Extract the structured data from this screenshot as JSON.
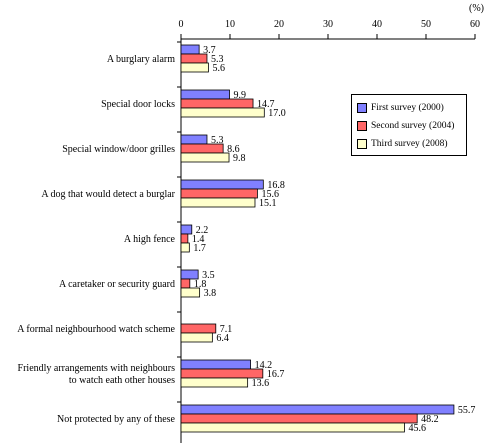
{
  "chart_data": {
    "type": "bar",
    "orientation": "horizontal",
    "unit_label": "(%)",
    "xlim": [
      0,
      60
    ],
    "ticks": [
      0,
      10,
      20,
      30,
      40,
      50,
      60
    ],
    "categories": [
      "A burglary alarm",
      "Special door locks",
      "Special window/door grilles",
      "A dog that would detect a burglar",
      "A high fence",
      "A caretaker or security guard",
      "A formal neighbourhood watch scheme",
      "Friendly arrangements with neighbours to watch eath other houses",
      "Not protected by any of these"
    ],
    "category_lines": [
      [
        "A burglary alarm"
      ],
      [
        "Special door locks"
      ],
      [
        "Special window/door grilles"
      ],
      [
        "A dog that would detect a burglar"
      ],
      [
        "A high fence"
      ],
      [
        "A caretaker or security guard"
      ],
      [
        "A formal neighbourhood watch scheme"
      ],
      [
        "Friendly arrangements with neighbours",
        "to watch eath other houses"
      ],
      [
        "Not protected by any of these"
      ]
    ],
    "series": [
      {
        "name": "First survey (2000)",
        "color": "#8080ff",
        "values": [
          3.7,
          9.9,
          5.3,
          16.8,
          2.2,
          3.5,
          null,
          14.2,
          55.7
        ],
        "labels": [
          "3.7",
          "9.9",
          "5.3",
          "16.8",
          "2.2",
          "3.5",
          "",
          "14.2",
          "55.7"
        ]
      },
      {
        "name": "Second survey (2004)",
        "color": "#ff6666",
        "values": [
          5.3,
          14.7,
          8.6,
          15.6,
          1.4,
          1.8,
          7.1,
          16.7,
          48.2
        ],
        "labels": [
          "5.3",
          "14.7",
          "8.6",
          "15.6",
          "1.4",
          "1.8",
          "7.1",
          "16.7",
          "48.2"
        ]
      },
      {
        "name": "Third survey (2008)",
        "color": "#ffffcc",
        "values": [
          5.6,
          17.0,
          9.8,
          15.1,
          1.7,
          3.8,
          6.4,
          13.6,
          45.6
        ],
        "labels": [
          "5.6",
          "17.0",
          "9.8",
          "15.1",
          "1.7",
          "3.8",
          "6.4",
          "13.6",
          "45.6"
        ]
      }
    ],
    "legend_position": "right",
    "grid": false
  }
}
